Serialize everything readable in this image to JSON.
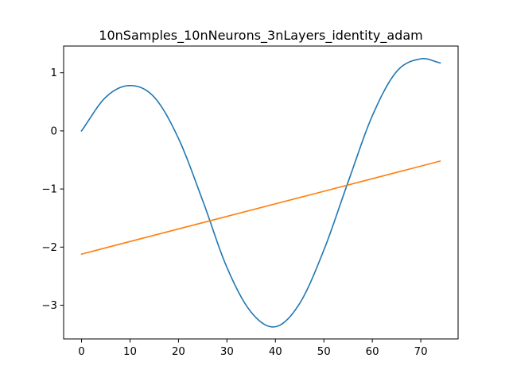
{
  "chart_data": {
    "type": "line",
    "title": "10nSamples_10nNeurons_3nLayers_identity_adam",
    "xlabel": "",
    "ylabel": "",
    "xlim": [
      -3.7,
      77.7
    ],
    "ylim": [
      -3.58,
      1.46
    ],
    "grid": false,
    "x_ticks": [
      0,
      10,
      20,
      30,
      40,
      50,
      60,
      70
    ],
    "y_ticks": [
      1,
      0,
      -1,
      -2,
      -3
    ],
    "x_tick_labels": [
      "0",
      "10",
      "20",
      "30",
      "40",
      "50",
      "60",
      "70"
    ],
    "y_tick_labels": [
      "1",
      "0",
      "−1",
      "−2",
      "−3"
    ],
    "series": [
      {
        "color": "#1f77b4",
        "x": [
          0,
          5,
          10,
          15,
          20,
          25,
          30,
          35,
          40,
          45,
          50,
          55,
          60,
          65,
          70,
          74
        ],
        "y": [
          0.0,
          0.58,
          0.78,
          0.58,
          -0.13,
          -1.2,
          -2.35,
          -3.12,
          -3.37,
          -2.97,
          -2.05,
          -0.88,
          0.26,
          1.02,
          1.24,
          1.17
        ]
      },
      {
        "color": "#ff7f0e",
        "x": [
          0,
          74
        ],
        "y": [
          -2.12,
          -0.52
        ]
      }
    ]
  }
}
